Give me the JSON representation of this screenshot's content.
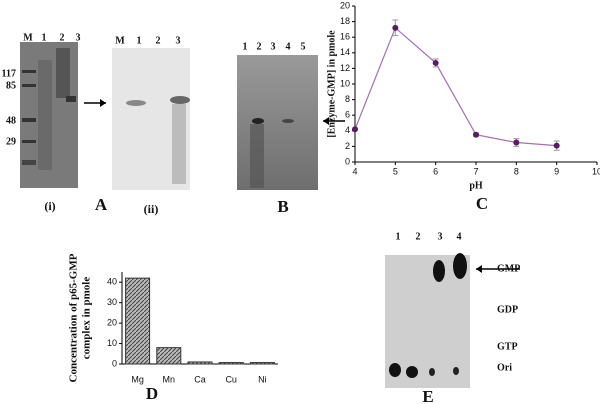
{
  "panels": {
    "A": {
      "label": "A",
      "gel_i": {
        "lanes": [
          "M",
          "1",
          "2",
          "3"
        ],
        "markers": [
          "117",
          "85",
          "48",
          "29"
        ],
        "caption": "(i)"
      },
      "gel_ii": {
        "lanes": [
          "M",
          "1",
          "2",
          "3"
        ],
        "caption": "(ii)"
      }
    },
    "B": {
      "label": "B",
      "lanes": [
        "1",
        "2",
        "3",
        "4",
        "5"
      ]
    },
    "E": {
      "label": "E",
      "lanes": [
        "1",
        "2",
        "3",
        "4"
      ],
      "spots": [
        "GMP",
        "GDP",
        "GTP",
        "Ori"
      ]
    }
  },
  "chart_data": [
    {
      "type": "line",
      "panel_label": "C",
      "x": [
        4,
        5,
        6,
        7,
        8,
        9
      ],
      "values": [
        4.2,
        17.2,
        12.7,
        3.5,
        2.5,
        2.1
      ],
      "errors": [
        0,
        1,
        0.5,
        0.2,
        0.5,
        0.6
      ],
      "color": "#a070b0",
      "marker_color": "#5a1a66",
      "xlim": [
        4,
        10
      ],
      "xticks": [
        4,
        5,
        6,
        7,
        8,
        9,
        10
      ],
      "ylim": [
        0,
        20
      ],
      "yticks": [
        0,
        2,
        4,
        6,
        8,
        10,
        12,
        14,
        16,
        18,
        20
      ],
      "xlabel": "pH",
      "ylabel": "[Enzyme-GMP] in pmole"
    },
    {
      "type": "bar",
      "panel_label": "D",
      "categories": [
        "Mg",
        "Mn",
        "Ca",
        "Cu",
        "Ni"
      ],
      "values": [
        42,
        8,
        1,
        0.7,
        0.7
      ],
      "color": "#888888",
      "ylim": [
        0,
        45
      ],
      "yticks": [
        0,
        10,
        20,
        30,
        40
      ],
      "ylabel": [
        "Concentration of p65-GMP",
        "complex in pmole"
      ]
    }
  ]
}
